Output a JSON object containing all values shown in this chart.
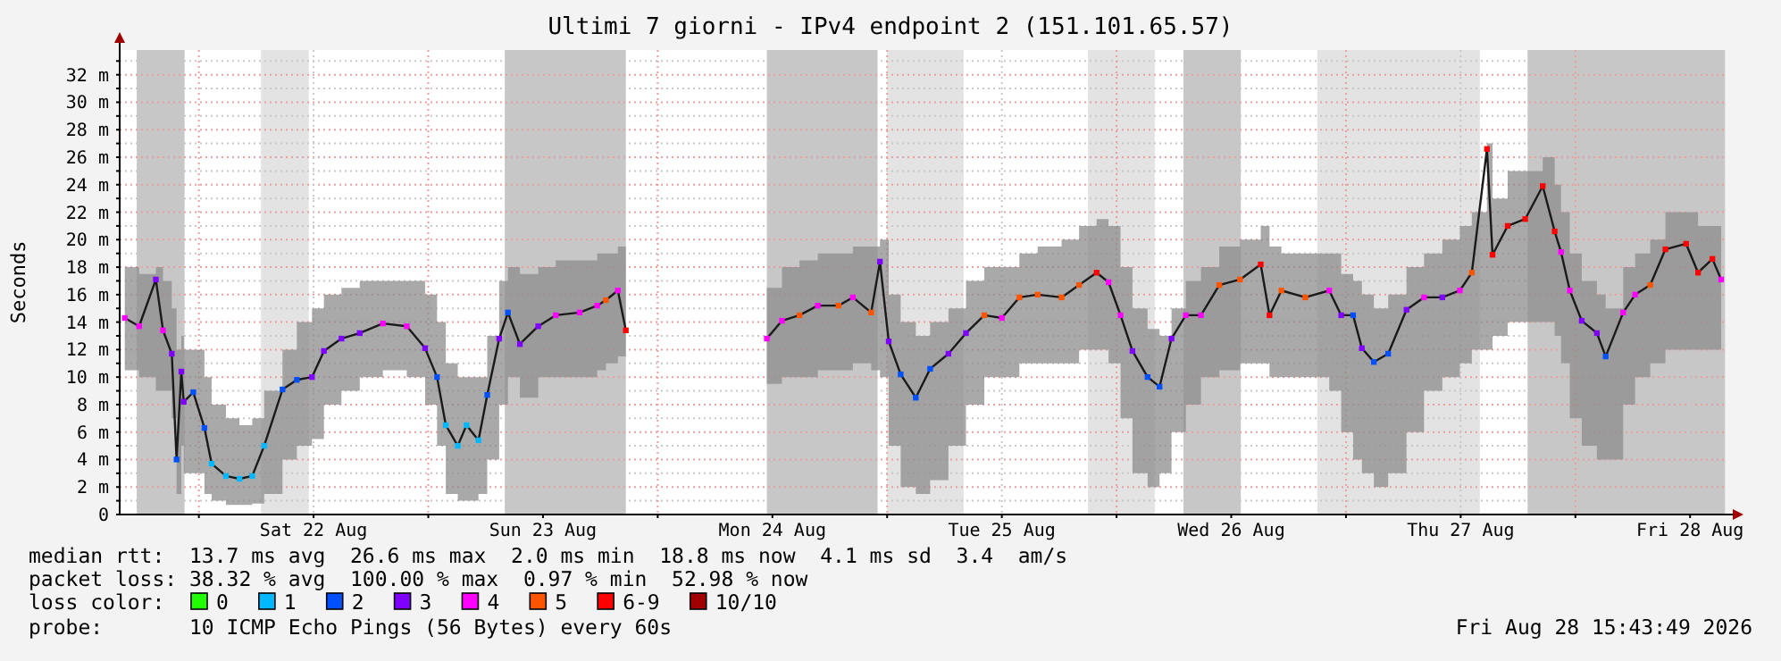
{
  "chart_data": {
    "type": "line",
    "title": "Ultimi 7 giorni - IPv4 endpoint 2 (151.101.65.57)",
    "ylabel": "Seconds",
    "xlim": [
      "2026-08-21T15:43",
      "2026-08-28T15:43"
    ],
    "xticks": [
      {
        "value": "2026-08-22T00:00",
        "label": null
      },
      {
        "value": "2026-08-22T12:00",
        "label": "Sat 22 Aug"
      },
      {
        "value": "2026-08-23T00:00",
        "label": null
      },
      {
        "value": "2026-08-23T12:00",
        "label": "Sun 23 Aug"
      },
      {
        "value": "2026-08-24T00:00",
        "label": null
      },
      {
        "value": "2026-08-24T12:00",
        "label": "Mon 24 Aug"
      },
      {
        "value": "2026-08-25T00:00",
        "label": null
      },
      {
        "value": "2026-08-25T12:00",
        "label": "Tue 25 Aug"
      },
      {
        "value": "2026-08-26T00:00",
        "label": null
      },
      {
        "value": "2026-08-26T12:00",
        "label": "Wed 26 Aug"
      },
      {
        "value": "2026-08-27T00:00",
        "label": null
      },
      {
        "value": "2026-08-27T12:00",
        "label": "Thu 27 Aug"
      },
      {
        "value": "2026-08-28T00:00",
        "label": null
      },
      {
        "value": "2026-08-28T12:00",
        "label": "Fri 28 Aug"
      }
    ],
    "ylim": [
      0,
      33.8
    ],
    "yticks": [
      0,
      {
        "value": 1,
        "label": null
      },
      {
        "value": 2,
        "label": "2 m"
      },
      {
        "value": 3,
        "label": null
      },
      {
        "value": 4,
        "label": "4 m"
      },
      {
        "value": 5,
        "label": null
      },
      {
        "value": 6,
        "label": "6 m"
      },
      {
        "value": 7,
        "label": null
      },
      {
        "value": 8,
        "label": "8 m"
      },
      {
        "value": 9,
        "label": null
      },
      {
        "value": 10,
        "label": "10 m"
      },
      {
        "value": 11,
        "label": null
      },
      {
        "value": 12,
        "label": "12 m"
      },
      {
        "value": 13,
        "label": null
      },
      {
        "value": 14,
        "label": "14 m"
      },
      {
        "value": 15,
        "label": null
      },
      {
        "value": 16,
        "label": "16 m"
      },
      {
        "value": 17,
        "label": null
      },
      {
        "value": 18,
        "label": "18 m"
      },
      {
        "value": 19,
        "label": null
      },
      {
        "value": 20,
        "label": "20 m"
      },
      {
        "value": 21,
        "label": null
      },
      {
        "value": 22,
        "label": "22 m"
      },
      {
        "value": 23,
        "label": null
      },
      {
        "value": 24,
        "label": "24 m"
      },
      {
        "value": 25,
        "label": null
      },
      {
        "value": 26,
        "label": "26 m"
      },
      {
        "value": 27,
        "label": null
      },
      {
        "value": 28,
        "label": "28 m"
      },
      {
        "value": 29,
        "label": null
      },
      {
        "value": 30,
        "label": "30 m"
      },
      {
        "value": 31,
        "label": null
      },
      {
        "value": 32,
        "label": "32 m"
      },
      {
        "value": 33,
        "label": null
      }
    ],
    "grid": true,
    "legend": "bottom",
    "legend_title": "loss color:",
    "bands": [
      {
        "axis": "x",
        "from": "2026-08-21T17:30",
        "to": "2026-08-21T22:30",
        "color": "#999999"
      },
      {
        "axis": "x",
        "from": "2026-08-22T06:30",
        "to": "2026-08-22T11:30",
        "color": "#cccccc"
      },
      {
        "axis": "x",
        "from": "2026-08-23T08:00",
        "to": "2026-08-23T20:40",
        "color": "#999999"
      },
      {
        "axis": "x",
        "from": "2026-08-24T11:25",
        "to": "2026-08-24T23:00",
        "color": "#999999"
      },
      {
        "axis": "x",
        "from": "2026-08-25T00:00",
        "to": "2026-08-25T08:00",
        "color": "#cccccc"
      },
      {
        "axis": "x",
        "from": "2026-08-25T21:00",
        "to": "2026-08-26T04:00",
        "color": "#cccccc"
      },
      {
        "axis": "x",
        "from": "2026-08-26T07:00",
        "to": "2026-08-26T13:00",
        "color": "#999999"
      },
      {
        "axis": "x",
        "from": "2026-08-26T21:00",
        "to": "2026-08-27T14:00",
        "color": "#cccccc"
      },
      {
        "axis": "x",
        "from": "2026-08-27T19:00",
        "to": "2026-08-28T15:40",
        "color": "#999999"
      }
    ],
    "series": [
      {
        "color": "#1a1a1a",
        "x": [
          "2026-08-21T16:15",
          "2026-08-21T17:45",
          "2026-08-21T19:30",
          "2026-08-21T20:15",
          "2026-08-21T21:10",
          "2026-08-21T21:40",
          "2026-08-21T22:10",
          "2026-08-21T22:25",
          "2026-08-21T23:25",
          "2026-08-22T00:35",
          "2026-08-22T01:20",
          "2026-08-22T02:50",
          "2026-08-22T04:15",
          "2026-08-22T05:35",
          "2026-08-22T06:50",
          "2026-08-22T08:45",
          "2026-08-22T10:15",
          "2026-08-22T11:50",
          "2026-08-22T13:05",
          "2026-08-22T14:55",
          "2026-08-22T16:50",
          "2026-08-22T19:15",
          "2026-08-22T21:45",
          "2026-08-22T23:40",
          "2026-08-23T00:55",
          "2026-08-23T01:50",
          "2026-08-23T03:05",
          "2026-08-23T04:00",
          "2026-08-23T05:15",
          "2026-08-23T06:10",
          "2026-08-23T07:25",
          "2026-08-23T08:20",
          "2026-08-23T09:35",
          "2026-08-23T11:30",
          "2026-08-23T13:20",
          "2026-08-23T15:50",
          "2026-08-23T17:40",
          "2026-08-23T18:35",
          "2026-08-23T19:50",
          "2026-08-23T20:40",
          "2026-08-24T04:00",
          "2026-08-24T11:25",
          "2026-08-24T13:00",
          "2026-08-24T14:50",
          "2026-08-24T16:45",
          "2026-08-24T18:55",
          "2026-08-24T20:25",
          "2026-08-24T22:20",
          "2026-08-24T23:15",
          "2026-08-25T00:10",
          "2026-08-25T01:25",
          "2026-08-25T03:00",
          "2026-08-25T04:30",
          "2026-08-25T06:25",
          "2026-08-25T08:15",
          "2026-08-25T10:10",
          "2026-08-25T12:00",
          "2026-08-25T13:50",
          "2026-08-25T15:45",
          "2026-08-25T18:15",
          "2026-08-25T20:05",
          "2026-08-25T21:55",
          "2026-08-25T23:10",
          "2026-08-26T00:25",
          "2026-08-26T01:40",
          "2026-08-26T03:15",
          "2026-08-26T04:30",
          "2026-08-26T05:45",
          "2026-08-26T07:15",
          "2026-08-26T08:50",
          "2026-08-26T10:45",
          "2026-08-26T12:55",
          "2026-08-26T15:05",
          "2026-08-26T16:00",
          "2026-08-26T17:15",
          "2026-08-26T19:45",
          "2026-08-26T22:15",
          "2026-08-26T23:30",
          "2026-08-27T00:45",
          "2026-08-27T01:40",
          "2026-08-27T02:55",
          "2026-08-27T04:25",
          "2026-08-27T06:20",
          "2026-08-27T08:10",
          "2026-08-27T10:05",
          "2026-08-27T11:55",
          "2026-08-27T13:10",
          "2026-08-27T14:45",
          "2026-08-27T15:20",
          "2026-08-27T16:55",
          "2026-08-27T18:45",
          "2026-08-27T20:35",
          "2026-08-27T21:50",
          "2026-08-27T22:30",
          "2026-08-27T23:25",
          "2026-08-28T00:40",
          "2026-08-28T02:15",
          "2026-08-28T03:10",
          "2026-08-28T05:00",
          "2026-08-28T06:15",
          "2026-08-28T07:50",
          "2026-08-28T09:25",
          "2026-08-28T11:35",
          "2026-08-28T12:50",
          "2026-08-28T14:20",
          "2026-08-28T15:15"
        ],
        "values": [
          14.3,
          13.7,
          17.1,
          13.4,
          11.7,
          4.0,
          10.4,
          8.2,
          8.9,
          6.3,
          3.7,
          2.8,
          2.6,
          2.8,
          5.0,
          9.1,
          9.8,
          10.0,
          11.9,
          12.8,
          13.2,
          13.9,
          13.7,
          12.1,
          10.0,
          6.5,
          5.0,
          6.5,
          5.4,
          8.7,
          12.8,
          14.7,
          12.4,
          13.7,
          14.5,
          14.7,
          15.2,
          15.6,
          16.3,
          13.4,
          null,
          12.8,
          14.1,
          14.5,
          15.2,
          15.2,
          15.8,
          14.7,
          18.4,
          12.6,
          10.2,
          8.5,
          10.6,
          11.7,
          13.2,
          14.5,
          14.3,
          15.8,
          16.0,
          15.8,
          16.7,
          17.6,
          16.9,
          14.5,
          11.9,
          10.0,
          9.3,
          12.8,
          14.5,
          14.5,
          16.7,
          17.1,
          18.2,
          14.5,
          16.3,
          15.8,
          16.3,
          14.5,
          14.5,
          12.1,
          11.1,
          11.7,
          14.9,
          15.8,
          15.8,
          16.3,
          17.6,
          26.6,
          18.9,
          21.0,
          21.5,
          23.9,
          20.6,
          19.1,
          16.3,
          14.1,
          13.2,
          11.5,
          14.7,
          16.0,
          16.7,
          19.3,
          19.7,
          17.6,
          18.6,
          17.1
        ],
        "lower": [
          10.5,
          10,
          9,
          9,
          7,
          1.5,
          5,
          3,
          3,
          1.5,
          1,
          0.7,
          0.7,
          0.8,
          1.5,
          4,
          5,
          5.5,
          8,
          9,
          10,
          10.5,
          10,
          8,
          5,
          1.5,
          1,
          1,
          1.5,
          4,
          8,
          10,
          8.5,
          10,
          10,
          10,
          10.5,
          11,
          11.5,
          12,
          null,
          9.5,
          10,
          10,
          10.5,
          10.5,
          11,
          10.5,
          10,
          5,
          2,
          1.5,
          2.5,
          5,
          8,
          10,
          10,
          11,
          11,
          11,
          12,
          12,
          11,
          7,
          3,
          2,
          3,
          6,
          8,
          10,
          10.5,
          11,
          11,
          10,
          10,
          10,
          9,
          6,
          4,
          3,
          2,
          3,
          6,
          9,
          10,
          11,
          12,
          12,
          13,
          14,
          14,
          14,
          13,
          11,
          7,
          5,
          4,
          4,
          8,
          10,
          11,
          12,
          12,
          12,
          12,
          11
        ],
        "upper": [
          18,
          17.5,
          18,
          17,
          15,
          12,
          13,
          12,
          12,
          10,
          8,
          7,
          6.5,
          7,
          9,
          12,
          14,
          15,
          16,
          16.5,
          17,
          17,
          17,
          16,
          14,
          11,
          10,
          10,
          10,
          13,
          17,
          18,
          17.5,
          18,
          18.5,
          18.5,
          19,
          19,
          19.5,
          18,
          null,
          16.5,
          18,
          18.5,
          19,
          19,
          19.5,
          19.5,
          20,
          16,
          14,
          13,
          14,
          15,
          17,
          18,
          18,
          19,
          19.5,
          20,
          21,
          21.5,
          21,
          18,
          15,
          13.5,
          13,
          15,
          17,
          18,
          19.5,
          20,
          21,
          19.5,
          19,
          19,
          19,
          17.5,
          17,
          16,
          15,
          16,
          18,
          19,
          20,
          21,
          22,
          27,
          23,
          25,
          25,
          26,
          24,
          22,
          19,
          17,
          16,
          15,
          18,
          19,
          20,
          22,
          22,
          21,
          21,
          20
        ]
      },
      {
        "type": "scatter",
        "marker": "square",
        "name": "0",
        "color": "#22ff00"
      },
      {
        "type": "scatter",
        "marker": "square",
        "name": "1",
        "color": "#00b8ff",
        "x": [
          "2026-08-22T01:20",
          "2026-08-22T02:50",
          "2026-08-22T04:15",
          "2026-08-22T05:35",
          "2026-08-22T06:50",
          "2026-08-23T01:50",
          "2026-08-23T03:05",
          "2026-08-23T04:00",
          "2026-08-23T05:15"
        ],
        "values": [
          3.7,
          2.8,
          2.6,
          2.8,
          5.0,
          6.5,
          5.0,
          6.5,
          5.4
        ]
      },
      {
        "type": "scatter",
        "marker": "square",
        "name": "2",
        "color": "#0050ff",
        "x": [
          "2026-08-21T21:40",
          "2026-08-21T23:25",
          "2026-08-22T00:35",
          "2026-08-22T08:45",
          "2026-08-22T10:15",
          "2026-08-23T00:55",
          "2026-08-23T06:10",
          "2026-08-23T08:20",
          "2026-08-25T01:25",
          "2026-08-25T03:00",
          "2026-08-25T04:30",
          "2026-08-26T03:15",
          "2026-08-26T04:30",
          "2026-08-27T00:45",
          "2026-08-27T02:55",
          "2026-08-27T04:25",
          "2026-08-28T03:10"
        ],
        "values": [
          4.0,
          8.9,
          6.3,
          9.1,
          9.8,
          10.0,
          8.7,
          14.7,
          10.2,
          8.5,
          10.6,
          10.0,
          9.3,
          14.5,
          11.1,
          11.7,
          11.5
        ]
      },
      {
        "type": "scatter",
        "marker": "square",
        "name": "3",
        "color": "#8000ff",
        "x": [
          "2026-08-21T19:30",
          "2026-08-21T21:10",
          "2026-08-21T22:10",
          "2026-08-21T22:25",
          "2026-08-22T11:50",
          "2026-08-22T13:05",
          "2026-08-22T14:55",
          "2026-08-22T16:50",
          "2026-08-22T23:40",
          "2026-08-23T07:25",
          "2026-08-23T09:35",
          "2026-08-23T11:30",
          "2026-08-24T23:15",
          "2026-08-25T00:10",
          "2026-08-25T06:25",
          "2026-08-25T08:15",
          "2026-08-26T01:40",
          "2026-08-26T05:45",
          "2026-08-26T23:30",
          "2026-08-27T01:40",
          "2026-08-27T06:20",
          "2026-08-27T10:05",
          "2026-08-28T00:40",
          "2026-08-28T02:15"
        ],
        "values": [
          17.1,
          11.7,
          10.4,
          8.2,
          10.0,
          11.9,
          12.8,
          13.2,
          12.1,
          12.8,
          12.4,
          13.7,
          18.4,
          12.6,
          11.7,
          13.2,
          11.9,
          12.8,
          14.5,
          12.1,
          14.9,
          15.8,
          14.1,
          13.2
        ]
      },
      {
        "type": "scatter",
        "marker": "square",
        "name": "4",
        "color": "#ff00ff",
        "x": [
          "2026-08-21T16:15",
          "2026-08-21T17:45",
          "2026-08-21T20:15",
          "2026-08-22T19:15",
          "2026-08-22T21:45",
          "2026-08-23T13:20",
          "2026-08-23T15:50",
          "2026-08-23T17:40",
          "2026-08-23T19:50",
          "2026-08-24T11:25",
          "2026-08-24T13:00",
          "2026-08-24T16:45",
          "2026-08-24T20:25",
          "2026-08-25T12:00",
          "2026-08-25T23:10",
          "2026-08-26T00:25",
          "2026-08-26T07:15",
          "2026-08-26T08:50",
          "2026-08-26T22:15",
          "2026-08-27T08:10",
          "2026-08-27T11:55",
          "2026-08-27T22:30",
          "2026-08-27T23:25",
          "2026-08-28T05:00",
          "2026-08-28T06:15",
          "2026-08-28T15:15"
        ],
        "values": [
          14.3,
          13.7,
          13.4,
          13.9,
          13.7,
          14.5,
          14.7,
          15.2,
          16.3,
          12.8,
          14.1,
          15.2,
          15.8,
          14.3,
          16.9,
          14.5,
          14.5,
          14.5,
          16.3,
          15.8,
          16.3,
          19.1,
          16.3,
          14.7,
          16.0,
          17.1
        ]
      },
      {
        "type": "scatter",
        "marker": "square",
        "name": "5",
        "color": "#ff5500",
        "x": [
          "2026-08-23T18:35",
          "2026-08-24T14:50",
          "2026-08-24T18:55",
          "2026-08-24T22:20",
          "2026-08-25T10:10",
          "2026-08-25T13:50",
          "2026-08-25T15:45",
          "2026-08-25T18:15",
          "2026-08-25T20:05",
          "2026-08-26T10:45",
          "2026-08-26T12:55",
          "2026-08-26T17:15",
          "2026-08-26T19:45",
          "2026-08-27T13:10",
          "2026-08-28T07:50"
        ],
        "values": [
          15.6,
          14.5,
          15.2,
          14.7,
          14.5,
          15.8,
          16.0,
          15.8,
          16.7,
          16.7,
          17.1,
          16.3,
          15.8,
          17.6,
          16.7
        ]
      },
      {
        "type": "scatter",
        "marker": "square",
        "name": "6-9",
        "color": "#ff0000",
        "x": [
          "2026-08-23T20:40",
          "2026-08-25T21:55",
          "2026-08-26T15:05",
          "2026-08-26T16:00",
          "2026-08-27T14:45",
          "2026-08-27T15:20",
          "2026-08-27T16:55",
          "2026-08-27T18:45",
          "2026-08-27T20:35",
          "2026-08-27T21:50",
          "2026-08-28T09:25",
          "2026-08-28T11:35",
          "2026-08-28T12:50",
          "2026-08-28T14:20"
        ],
        "values": [
          13.4,
          17.6,
          18.2,
          14.5,
          26.6,
          18.9,
          21.0,
          21.5,
          23.9,
          20.6,
          19.3,
          19.7,
          17.6,
          18.6
        ]
      },
      {
        "type": "scatter",
        "marker": "square",
        "name": "10/10",
        "color": "#a00000"
      }
    ],
    "annotations": [
      "median rtt:  13.7 ms avg  26.6 ms max  2.0 ms min  18.8 ms now  4.1 ms sd  3.4  am/s",
      "packet loss: 38.32 % avg  100.00 % max  0.97 % min  52.98 % now",
      "probe:       10 ICMP Echo Pings (56 Bytes) every 60s",
      "Fri Aug 28 15:43:49 2026"
    ]
  }
}
